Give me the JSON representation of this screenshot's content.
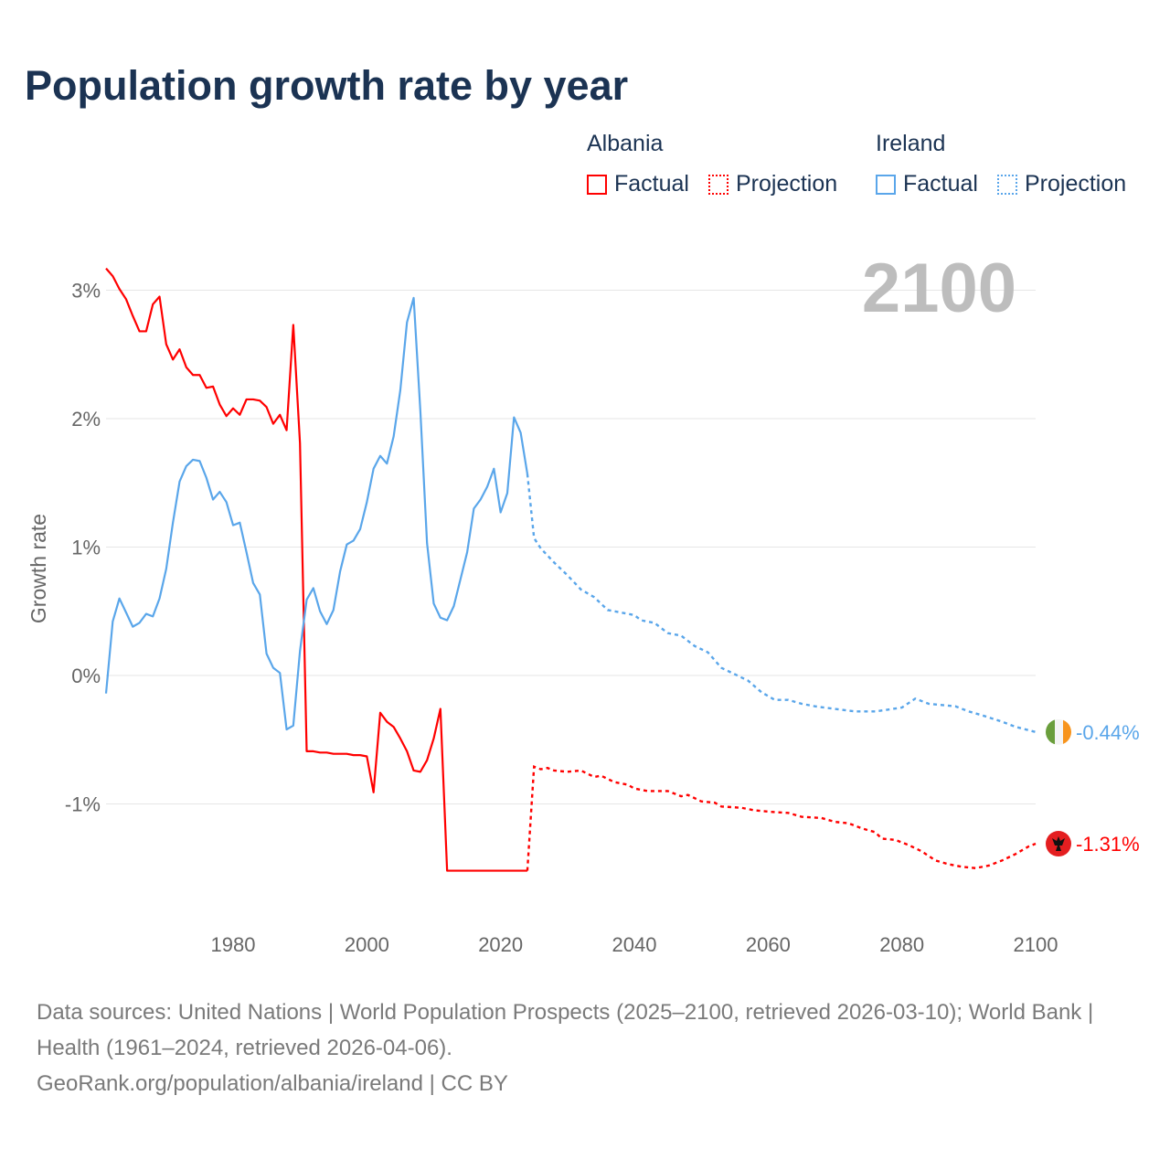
{
  "title": "Population growth rate by year",
  "current_year": "2100",
  "legend": {
    "groups": [
      {
        "name": "Albania",
        "factual": "Factual",
        "projection": "Projection",
        "color": "#ff0000"
      },
      {
        "name": "Ireland",
        "factual": "Factual",
        "projection": "Projection",
        "color": "#5aa6ea"
      }
    ]
  },
  "footer": {
    "sources": "Data sources: United Nations | World Population Prospects (2025–2100, retrieved 2026-03-10); World Bank | Health (1961–2024, retrieved 2026-04-06).",
    "link": "GeoRank.org/population/albania/ireland | CC BY"
  },
  "chart_data": {
    "type": "line",
    "title": "Population growth rate by year",
    "xlabel": "",
    "ylabel": "Growth rate",
    "xlim": [
      1961,
      2100
    ],
    "ylim": [
      -1.9,
      3.3
    ],
    "xticks": [
      1980,
      2000,
      2020,
      2040,
      2060,
      2080,
      2100
    ],
    "yticks": [
      3,
      2,
      1,
      0,
      -1
    ],
    "ytick_labels": [
      "3%",
      "2%",
      "1%",
      "0%",
      "-1%"
    ],
    "grid": true,
    "series": [
      {
        "name": "Albania",
        "color": "#ff0000",
        "end_label": "-1.31%",
        "flag_icon": "albania-flag-icon",
        "factual": {
          "x": [
            1961,
            1962,
            1963,
            1964,
            1965,
            1966,
            1967,
            1968,
            1969,
            1970,
            1971,
            1972,
            1973,
            1974,
            1975,
            1976,
            1977,
            1978,
            1979,
            1980,
            1981,
            1982,
            1983,
            1984,
            1985,
            1986,
            1987,
            1988,
            1989,
            1990,
            1991,
            1992,
            1993,
            1994,
            1995,
            1996,
            1997,
            1998,
            1999,
            2000,
            2001,
            2002,
            2003,
            2004,
            2005,
            2006,
            2007,
            2008,
            2009,
            2010,
            2011,
            2012,
            2013,
            2014,
            2015,
            2016,
            2017,
            2018,
            2019,
            2020,
            2021,
            2022,
            2023,
            2024
          ],
          "y": [
            3.17,
            3.11,
            3.01,
            2.93,
            2.8,
            2.68,
            2.68,
            2.89,
            2.95,
            2.58,
            2.46,
            2.54,
            2.4,
            2.34,
            2.34,
            2.24,
            2.25,
            2.11,
            2.02,
            2.08,
            2.03,
            2.15,
            2.15,
            2.14,
            2.09,
            1.96,
            2.03,
            1.91,
            2.73,
            1.81,
            -0.59,
            -0.59,
            -0.6,
            -0.6,
            -0.61,
            -0.61,
            -0.61,
            -0.62,
            -0.62,
            -0.63,
            -0.91,
            -0.29,
            -0.36,
            -0.4,
            -0.49,
            -0.59,
            -0.74,
            -0.75,
            -0.66,
            -0.49,
            -0.26,
            -1.52,
            -1.52,
            -1.52,
            -1.52,
            -1.52,
            -1.52,
            -1.52,
            -1.52,
            -1.52,
            -1.52,
            -1.52,
            -1.52,
            -1.52
          ]
        },
        "projection": {
          "x": [
            2025,
            2026,
            2027,
            2028,
            2030,
            2032,
            2034,
            2035,
            2037,
            2039,
            2040,
            2042,
            2045,
            2047,
            2048,
            2050,
            2052,
            2053,
            2056,
            2058,
            2060,
            2063,
            2065,
            2068,
            2070,
            2072,
            2074,
            2076,
            2077,
            2079,
            2081,
            2083,
            2085,
            2087,
            2089,
            2091,
            2093,
            2095,
            2097,
            2099,
            2100
          ],
          "y": [
            -0.71,
            -0.73,
            -0.72,
            -0.74,
            -0.75,
            -0.74,
            -0.79,
            -0.78,
            -0.83,
            -0.85,
            -0.88,
            -0.9,
            -0.9,
            -0.94,
            -0.93,
            -0.98,
            -0.99,
            -1.02,
            -1.03,
            -1.05,
            -1.06,
            -1.07,
            -1.1,
            -1.11,
            -1.14,
            -1.15,
            -1.19,
            -1.22,
            -1.27,
            -1.28,
            -1.32,
            -1.37,
            -1.44,
            -1.47,
            -1.49,
            -1.5,
            -1.48,
            -1.44,
            -1.39,
            -1.33,
            -1.31
          ]
        }
      },
      {
        "name": "Ireland",
        "color": "#5aa6ea",
        "end_label": "-0.44%",
        "flag_icon": "ireland-flag-icon",
        "factual": {
          "x": [
            1961,
            1962,
            1963,
            1964,
            1965,
            1966,
            1967,
            1968,
            1969,
            1970,
            1971,
            1972,
            1973,
            1974,
            1975,
            1976,
            1977,
            1978,
            1979,
            1980,
            1981,
            1982,
            1983,
            1984,
            1985,
            1986,
            1987,
            1988,
            1989,
            1990,
            1991,
            1992,
            1993,
            1994,
            1995,
            1996,
            1997,
            1998,
            1999,
            2000,
            2001,
            2002,
            2003,
            2004,
            2005,
            2006,
            2007,
            2008,
            2009,
            2010,
            2011,
            2012,
            2013,
            2014,
            2015,
            2016,
            2017,
            2018,
            2019,
            2020,
            2021,
            2022,
            2023,
            2024
          ],
          "y": [
            -0.14,
            0.42,
            0.6,
            0.49,
            0.38,
            0.41,
            0.48,
            0.46,
            0.6,
            0.83,
            1.19,
            1.51,
            1.63,
            1.68,
            1.67,
            1.54,
            1.37,
            1.43,
            1.35,
            1.17,
            1.19,
            0.96,
            0.72,
            0.63,
            0.17,
            0.06,
            0.02,
            -0.42,
            -0.39,
            0.19,
            0.59,
            0.68,
            0.5,
            0.4,
            0.51,
            0.81,
            1.02,
            1.05,
            1.14,
            1.35,
            1.61,
            1.71,
            1.65,
            1.86,
            2.22,
            2.75,
            2.94,
            2.06,
            1.03,
            0.56,
            0.45,
            0.43,
            0.54,
            0.75,
            0.96,
            1.3,
            1.37,
            1.47,
            1.61,
            1.27,
            1.42,
            2.01,
            1.89,
            1.57
          ]
        },
        "projection": {
          "x": [
            2025,
            2026,
            2028,
            2030,
            2032,
            2034,
            2036,
            2038,
            2040,
            2041,
            2043,
            2045,
            2047,
            2049,
            2051,
            2053,
            2055,
            2057,
            2059,
            2061,
            2063,
            2065,
            2067,
            2070,
            2073,
            2076,
            2080,
            2082,
            2084,
            2088,
            2090,
            2092,
            2095,
            2097,
            2100
          ],
          "y": [
            1.07,
            0.99,
            0.88,
            0.78,
            0.67,
            0.61,
            0.51,
            0.49,
            0.47,
            0.43,
            0.41,
            0.33,
            0.31,
            0.23,
            0.18,
            0.06,
            0.01,
            -0.04,
            -0.13,
            -0.19,
            -0.19,
            -0.22,
            -0.24,
            -0.26,
            -0.28,
            -0.28,
            -0.25,
            -0.18,
            -0.22,
            -0.24,
            -0.28,
            -0.31,
            -0.36,
            -0.4,
            -0.44
          ]
        }
      }
    ]
  }
}
